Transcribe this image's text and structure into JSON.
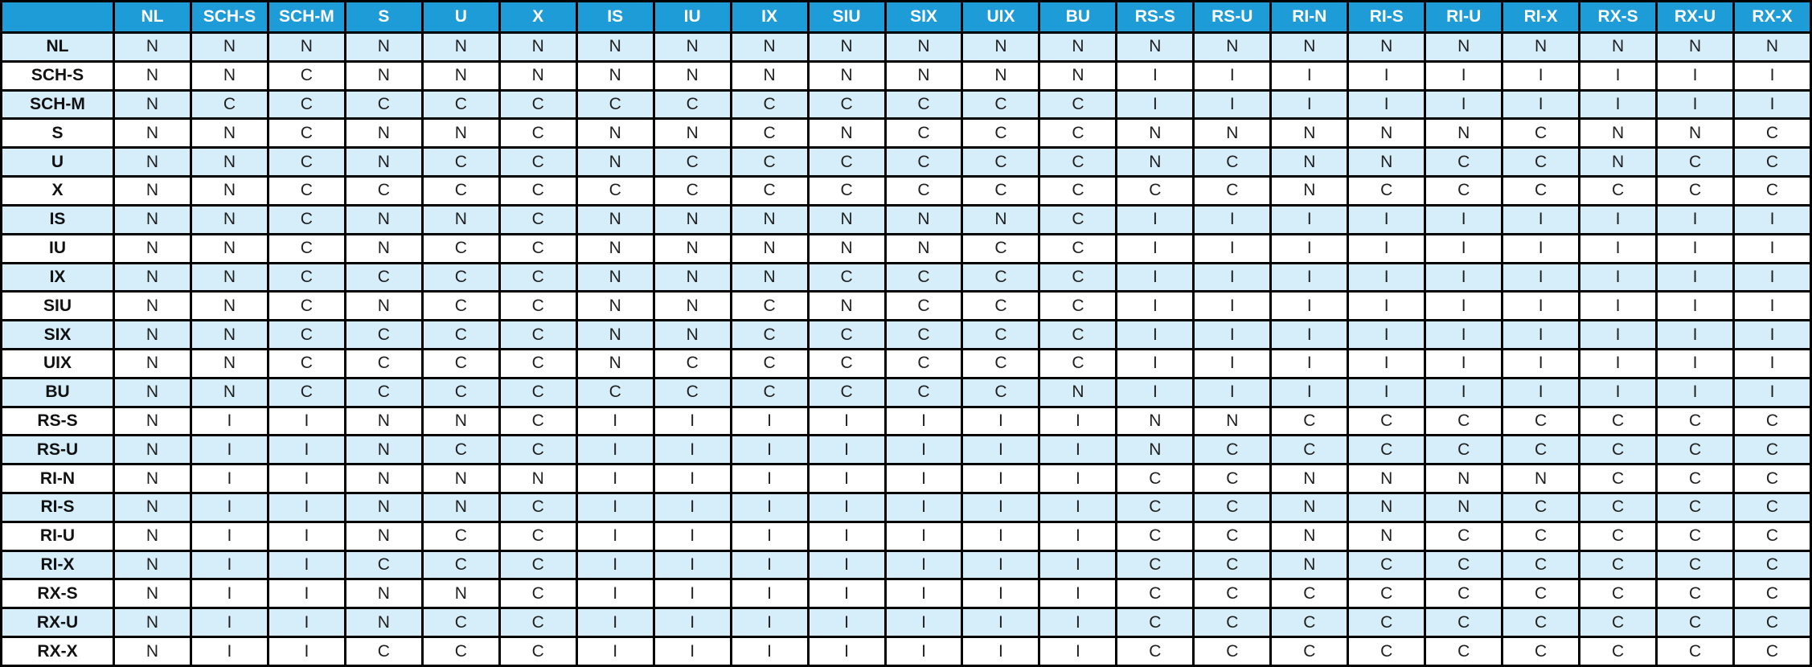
{
  "colors": {
    "header_bg": "#1e9cd8",
    "header_text": "#ffffff",
    "stripe_bg": "#d6edfa",
    "plain_bg": "#ffffff",
    "border": "#000000",
    "cell_text": "#1f1f1f",
    "label_text": "#111111"
  },
  "chart_data": {
    "type": "table",
    "corner_label": "",
    "columns": [
      "NL",
      "SCH-S",
      "SCH-M",
      "S",
      "U",
      "X",
      "IS",
      "IU",
      "IX",
      "SIU",
      "SIX",
      "UIX",
      "BU",
      "RS-S",
      "RS-U",
      "RI-N",
      "RI-S",
      "RI-U",
      "RI-X",
      "RX-S",
      "RX-U",
      "RX-X"
    ],
    "rows": [
      {
        "label": "NL",
        "values": [
          "N",
          "N",
          "N",
          "N",
          "N",
          "N",
          "N",
          "N",
          "N",
          "N",
          "N",
          "N",
          "N",
          "N",
          "N",
          "N",
          "N",
          "N",
          "N",
          "N",
          "N",
          "N"
        ]
      },
      {
        "label": "SCH-S",
        "values": [
          "N",
          "N",
          "C",
          "N",
          "N",
          "N",
          "N",
          "N",
          "N",
          "N",
          "N",
          "N",
          "N",
          "I",
          "I",
          "I",
          "I",
          "I",
          "I",
          "I",
          "I",
          "I"
        ]
      },
      {
        "label": "SCH-M",
        "values": [
          "N",
          "C",
          "C",
          "C",
          "C",
          "C",
          "C",
          "C",
          "C",
          "C",
          "C",
          "C",
          "C",
          "I",
          "I",
          "I",
          "I",
          "I",
          "I",
          "I",
          "I",
          "I"
        ]
      },
      {
        "label": "S",
        "values": [
          "N",
          "N",
          "C",
          "N",
          "N",
          "C",
          "N",
          "N",
          "C",
          "N",
          "C",
          "C",
          "C",
          "N",
          "N",
          "N",
          "N",
          "N",
          "C",
          "N",
          "N",
          "C"
        ]
      },
      {
        "label": "U",
        "values": [
          "N",
          "N",
          "C",
          "N",
          "C",
          "C",
          "N",
          "C",
          "C",
          "C",
          "C",
          "C",
          "C",
          "N",
          "C",
          "N",
          "N",
          "C",
          "C",
          "N",
          "C",
          "C"
        ]
      },
      {
        "label": "X",
        "values": [
          "N",
          "N",
          "C",
          "C",
          "C",
          "C",
          "C",
          "C",
          "C",
          "C",
          "C",
          "C",
          "C",
          "C",
          "C",
          "N",
          "C",
          "C",
          "C",
          "C",
          "C",
          "C"
        ]
      },
      {
        "label": "IS",
        "values": [
          "N",
          "N",
          "C",
          "N",
          "N",
          "C",
          "N",
          "N",
          "N",
          "N",
          "N",
          "N",
          "C",
          "I",
          "I",
          "I",
          "I",
          "I",
          "I",
          "I",
          "I",
          "I"
        ]
      },
      {
        "label": "IU",
        "values": [
          "N",
          "N",
          "C",
          "N",
          "C",
          "C",
          "N",
          "N",
          "N",
          "N",
          "N",
          "C",
          "C",
          "I",
          "I",
          "I",
          "I",
          "I",
          "I",
          "I",
          "I",
          "I"
        ]
      },
      {
        "label": "IX",
        "values": [
          "N",
          "N",
          "C",
          "C",
          "C",
          "C",
          "N",
          "N",
          "N",
          "C",
          "C",
          "C",
          "C",
          "I",
          "I",
          "I",
          "I",
          "I",
          "I",
          "I",
          "I",
          "I"
        ]
      },
      {
        "label": "SIU",
        "values": [
          "N",
          "N",
          "C",
          "N",
          "C",
          "C",
          "N",
          "N",
          "C",
          "N",
          "C",
          "C",
          "C",
          "I",
          "I",
          "I",
          "I",
          "I",
          "I",
          "I",
          "I",
          "I"
        ]
      },
      {
        "label": "SIX",
        "values": [
          "N",
          "N",
          "C",
          "C",
          "C",
          "C",
          "N",
          "N",
          "C",
          "C",
          "C",
          "C",
          "C",
          "I",
          "I",
          "I",
          "I",
          "I",
          "I",
          "I",
          "I",
          "I"
        ]
      },
      {
        "label": "UIX",
        "values": [
          "N",
          "N",
          "C",
          "C",
          "C",
          "C",
          "N",
          "C",
          "C",
          "C",
          "C",
          "C",
          "C",
          "I",
          "I",
          "I",
          "I",
          "I",
          "I",
          "I",
          "I",
          "I"
        ]
      },
      {
        "label": "BU",
        "values": [
          "N",
          "N",
          "C",
          "C",
          "C",
          "C",
          "C",
          "C",
          "C",
          "C",
          "C",
          "C",
          "N",
          "I",
          "I",
          "I",
          "I",
          "I",
          "I",
          "I",
          "I",
          "I"
        ]
      },
      {
        "label": "RS-S",
        "values": [
          "N",
          "I",
          "I",
          "N",
          "N",
          "C",
          "I",
          "I",
          "I",
          "I",
          "I",
          "I",
          "I",
          "N",
          "N",
          "C",
          "C",
          "C",
          "C",
          "C",
          "C",
          "C"
        ]
      },
      {
        "label": "RS-U",
        "values": [
          "N",
          "I",
          "I",
          "N",
          "C",
          "C",
          "I",
          "I",
          "I",
          "I",
          "I",
          "I",
          "I",
          "N",
          "C",
          "C",
          "C",
          "C",
          "C",
          "C",
          "C",
          "C"
        ]
      },
      {
        "label": "RI-N",
        "values": [
          "N",
          "I",
          "I",
          "N",
          "N",
          "N",
          "I",
          "I",
          "I",
          "I",
          "I",
          "I",
          "I",
          "C",
          "C",
          "N",
          "N",
          "N",
          "N",
          "C",
          "C",
          "C"
        ]
      },
      {
        "label": "RI-S",
        "values": [
          "N",
          "I",
          "I",
          "N",
          "N",
          "C",
          "I",
          "I",
          "I",
          "I",
          "I",
          "I",
          "I",
          "C",
          "C",
          "N",
          "N",
          "N",
          "C",
          "C",
          "C",
          "C"
        ]
      },
      {
        "label": "RI-U",
        "values": [
          "N",
          "I",
          "I",
          "N",
          "C",
          "C",
          "I",
          "I",
          "I",
          "I",
          "I",
          "I",
          "I",
          "C",
          "C",
          "N",
          "N",
          "C",
          "C",
          "C",
          "C",
          "C"
        ]
      },
      {
        "label": "RI-X",
        "values": [
          "N",
          "I",
          "I",
          "C",
          "C",
          "C",
          "I",
          "I",
          "I",
          "I",
          "I",
          "I",
          "I",
          "C",
          "C",
          "N",
          "C",
          "C",
          "C",
          "C",
          "C",
          "C"
        ]
      },
      {
        "label": "RX-S",
        "values": [
          "N",
          "I",
          "I",
          "N",
          "N",
          "C",
          "I",
          "I",
          "I",
          "I",
          "I",
          "I",
          "I",
          "C",
          "C",
          "C",
          "C",
          "C",
          "C",
          "C",
          "C",
          "C"
        ]
      },
      {
        "label": "RX-U",
        "values": [
          "N",
          "I",
          "I",
          "N",
          "C",
          "C",
          "I",
          "I",
          "I",
          "I",
          "I",
          "I",
          "I",
          "C",
          "C",
          "C",
          "C",
          "C",
          "C",
          "C",
          "C",
          "C"
        ]
      },
      {
        "label": "RX-X",
        "values": [
          "N",
          "I",
          "I",
          "C",
          "C",
          "C",
          "I",
          "I",
          "I",
          "I",
          "I",
          "I",
          "I",
          "C",
          "C",
          "C",
          "C",
          "C",
          "C",
          "C",
          "C",
          "C"
        ]
      }
    ]
  }
}
